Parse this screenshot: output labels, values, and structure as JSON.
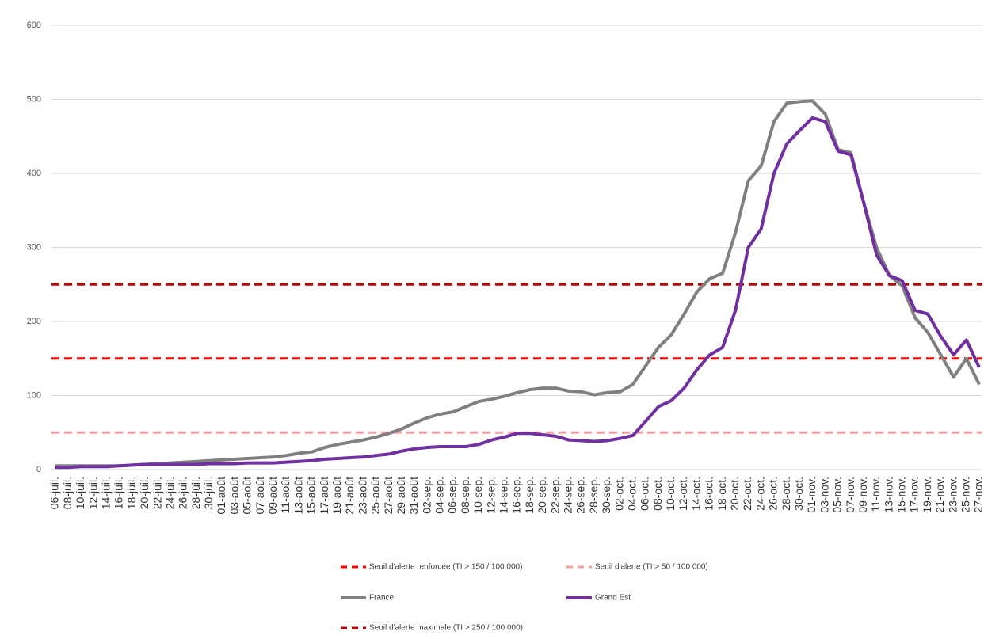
{
  "chart_data": {
    "type": "line",
    "categories": [
      "06-juil.",
      "08-juil.",
      "10-juil.",
      "12-juil.",
      "14-juil.",
      "16-juil.",
      "18-juil.",
      "20-juil.",
      "22-juil.",
      "24-juil.",
      "26-juil.",
      "28-juil.",
      "30-juil.",
      "01-août",
      "03-août",
      "05-août",
      "07-août",
      "09-août",
      "11-août",
      "13-août",
      "15-août",
      "17-août",
      "19-août",
      "21-août",
      "23-août",
      "25-août",
      "27-août",
      "29-août",
      "31-août",
      "02-sep.",
      "04-sep.",
      "06-sep.",
      "08-sep.",
      "10-sep.",
      "12-sep.",
      "14-sep.",
      "16-sep.",
      "18-sep.",
      "20-sep.",
      "22-sep.",
      "24-sep.",
      "26-sep.",
      "28-sep.",
      "30-sep.",
      "02-oct.",
      "04-oct.",
      "06-oct.",
      "08-oct.",
      "10-oct.",
      "12-oct.",
      "14-oct.",
      "16-oct.",
      "18-oct.",
      "20-oct.",
      "22-oct.",
      "24-oct.",
      "26-oct.",
      "28-oct.",
      "30-oct.",
      "01-nov.",
      "03-nov.",
      "05-nov.",
      "07-nov.",
      "09-nov.",
      "11-nov.",
      "13-nov.",
      "15-nov.",
      "17-nov.",
      "19-nov.",
      "21-nov.",
      "23-nov.",
      "25-nov.",
      "27-nov."
    ],
    "series": [
      {
        "name": "France",
        "color": "#808080",
        "values": [
          5,
          5,
          5,
          5,
          5,
          5,
          6,
          7,
          8,
          9,
          10,
          11,
          12,
          13,
          14,
          15,
          16,
          17,
          19,
          22,
          24,
          30,
          34,
          37,
          40,
          44,
          49,
          55,
          63,
          70,
          75,
          78,
          85,
          92,
          95,
          99,
          104,
          108,
          110,
          110,
          106,
          105,
          101,
          104,
          105,
          115,
          140,
          165,
          182,
          210,
          240,
          258,
          265,
          320,
          390,
          410,
          470,
          495,
          497,
          498,
          480,
          432,
          428,
          360,
          300,
          262,
          248,
          205,
          185,
          155,
          125,
          150,
          115
        ]
      },
      {
        "name": "Grand Est",
        "color": "#7030a0",
        "values": [
          3,
          3,
          4,
          4,
          4,
          5,
          6,
          7,
          7,
          7,
          7,
          7,
          8,
          8,
          8,
          9,
          9,
          9,
          10,
          11,
          12,
          14,
          15,
          16,
          17,
          19,
          21,
          25,
          28,
          30,
          31,
          31,
          31,
          34,
          40,
          44,
          49,
          49,
          47,
          45,
          40,
          39,
          38,
          39,
          42,
          46,
          65,
          85,
          93,
          110,
          135,
          155,
          165,
          215,
          300,
          325,
          400,
          440,
          458,
          475,
          470,
          430,
          425,
          360,
          290,
          262,
          255,
          215,
          210,
          180,
          155,
          175,
          138
        ]
      }
    ],
    "thresholds": [
      {
        "name": "Seuil d'alerte renforcée (TI > 150 / 100 000)",
        "value": 150,
        "color": "#ff0000"
      },
      {
        "name": "Seuil d'alerte (TI > 50 / 100 000)",
        "value": 50,
        "color": "#f4a0a0"
      },
      {
        "name": "Seuil d'alerte maximale (TI > 250 / 100 000)",
        "value": 250,
        "color": "#c00000"
      }
    ],
    "ylim": [
      0,
      600
    ],
    "yticks": [
      0,
      100,
      200,
      300,
      400,
      500,
      600
    ],
    "grid": true
  }
}
